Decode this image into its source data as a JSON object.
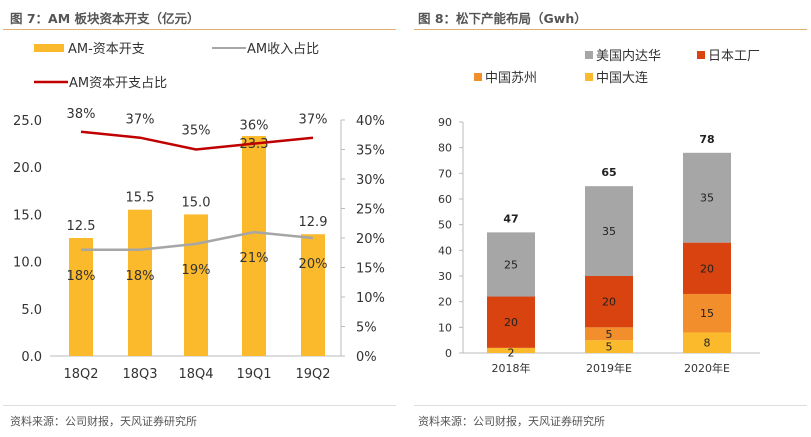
{
  "chart_data": [
    {
      "type": "bar+line",
      "title": "图 7：AM 板块资本开支（亿元）",
      "categories": [
        "18Q2",
        "18Q3",
        "18Q4",
        "19Q1",
        "19Q2"
      ],
      "series": [
        {
          "name": "AM-资本开支",
          "type": "bar",
          "axis": "left",
          "values": [
            12.5,
            15.5,
            15.0,
            23.3,
            12.9
          ],
          "color": "#FBBA2C"
        },
        {
          "name": "AM收入占比",
          "type": "line",
          "axis": "right",
          "values": [
            18,
            18,
            19,
            21,
            20
          ],
          "color": "#A6A6A6"
        },
        {
          "name": "AM资本开支占比",
          "type": "line",
          "axis": "right",
          "values": [
            38,
            37,
            35,
            36,
            37
          ],
          "color": "#C00000"
        }
      ],
      "ylim": [
        0,
        25
      ],
      "yticks": [
        "0.0",
        "5.0",
        "10.0",
        "15.0",
        "20.0",
        "25.0"
      ],
      "y2lim": [
        0,
        40
      ],
      "y2ticks": [
        "0%",
        "5%",
        "10%",
        "15%",
        "20%",
        "25%",
        "30%",
        "35%",
        "40%"
      ],
      "legend": "top",
      "source": "资料来源：公司财报，天风证券研究所"
    },
    {
      "type": "stacked-bar",
      "title": "图 8：松下产能布局（Gwh）",
      "categories": [
        "2018年",
        "2019年E",
        "2020年E"
      ],
      "series": [
        {
          "name": "中国大连",
          "values": [
            2,
            5,
            8
          ],
          "color": "#FBBA2C"
        },
        {
          "name": "中国苏州",
          "values": [
            0,
            5,
            15
          ],
          "color": "#F28E2B"
        },
        {
          "name": "日本工厂",
          "values": [
            20,
            20,
            20
          ],
          "color": "#D9430F"
        },
        {
          "name": "美国内达华",
          "values": [
            25,
            35,
            35
          ],
          "color": "#A6A6A6"
        }
      ],
      "totals": [
        47,
        65,
        78
      ],
      "legend_order": [
        "美国内达华",
        "日本工厂",
        "中国苏州",
        "中国大连"
      ],
      "ylim": [
        0,
        90
      ],
      "yticks": [
        "0",
        "10",
        "20",
        "30",
        "40",
        "50",
        "60",
        "70",
        "80",
        "90"
      ],
      "legend": "top",
      "source": "资料来源：公司财报，天风证券研究所"
    }
  ]
}
